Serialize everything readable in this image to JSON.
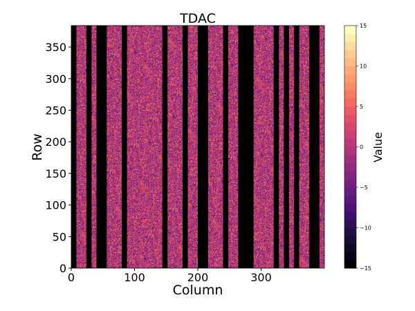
{
  "chart_data": {
    "type": "heatmap",
    "title": "TDAC",
    "xlabel": "Column",
    "ylabel": "Row",
    "xlim": [
      0,
      400
    ],
    "ylim": [
      0,
      384
    ],
    "xticks": [
      0,
      100,
      200,
      300
    ],
    "yticks": [
      0,
      50,
      100,
      150,
      200,
      250,
      300,
      350
    ],
    "masked_column_ranges": [
      [
        0,
        8
      ],
      [
        24,
        32
      ],
      [
        40,
        56
      ],
      [
        80,
        88
      ],
      [
        144,
        152
      ],
      [
        176,
        184
      ],
      [
        200,
        216
      ],
      [
        240,
        248
      ],
      [
        264,
        288
      ],
      [
        320,
        328
      ],
      [
        336,
        344
      ],
      [
        352,
        360
      ],
      [
        376,
        392
      ]
    ],
    "masked_value": -15,
    "value_distribution": {
      "mean": 0,
      "std": 4
    },
    "colormap": "magma",
    "colorbar": {
      "label": "Value",
      "range": [
        -15,
        15
      ],
      "levels": 30,
      "ticks": [
        -15,
        -10,
        -5,
        0,
        5,
        10,
        15
      ],
      "tick_labels": [
        "−15",
        "−10",
        "−5",
        "0",
        "5",
        "10",
        "15"
      ]
    }
  }
}
